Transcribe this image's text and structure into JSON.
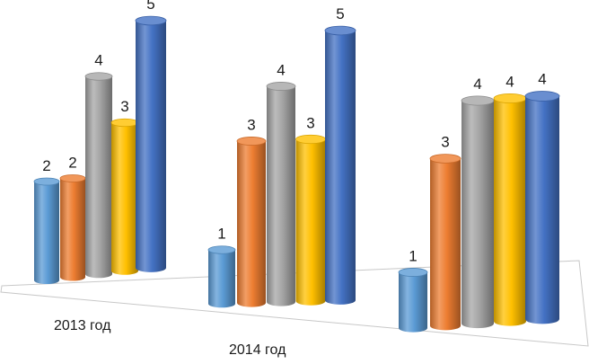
{
  "chart_data": {
    "type": "bar",
    "style": "3d-cylinder",
    "categories": [
      "2013 год",
      "2014 год",
      ""
    ],
    "series": [
      {
        "values": [
          2,
          1,
          1
        ],
        "color": "#5b9bd5"
      },
      {
        "values": [
          2,
          3,
          3
        ],
        "color": "#ed7d31"
      },
      {
        "values": [
          4,
          4,
          4
        ],
        "color": "#a5a5a5"
      },
      {
        "values": [
          3,
          3,
          4
        ],
        "color": "#ffc000"
      },
      {
        "values": [
          5,
          5,
          4
        ],
        "color": "#4472c4"
      }
    ],
    "data_labels": true,
    "legend": "none",
    "grid": false
  }
}
